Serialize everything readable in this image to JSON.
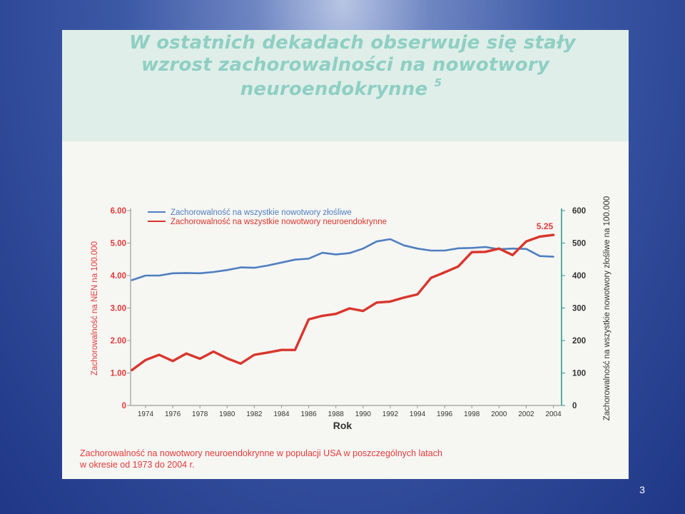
{
  "slide": {
    "title_lines": [
      "W ostatnich dekadach obserwuje się stały",
      "wzrost zachorowalności na nowotwory",
      "neuroendokrynne"
    ],
    "title_superscript": "5",
    "caption_lines": [
      "Zachorowalność na nowotwory neuroendokrynne w populacji USA w poszczególnych latach",
      "w okresie od 1973 do 2004 r."
    ],
    "slide_number": "3",
    "colors": {
      "title": "#8fcfc4",
      "title_band": "#dfeee8",
      "panel": "#f6f6f3",
      "left_axis": "#e23a3a",
      "right_axis": "#2e9b8f",
      "caption": "#e23a3a"
    }
  },
  "chart_data": {
    "type": "line",
    "title": "",
    "xlabel": "Rok",
    "ylabel_left": "Zachorowalność na NEN na 100.000",
    "ylabel_right": "Zachorowalność na wszystkie nowotwory złośliwe na 100.000",
    "x_ticks": [
      "1974",
      "1976",
      "1978",
      "1980",
      "1982",
      "1984",
      "1986",
      "1988",
      "1990",
      "1992",
      "1994",
      "1996",
      "1998",
      "2000",
      "2002",
      "2004"
    ],
    "y_left_ticks": [
      "6.00",
      "5.00",
      "4.00",
      "3.00",
      "2.00",
      "1.00",
      "0"
    ],
    "y_right_ticks": [
      "600",
      "500",
      "400",
      "300",
      "200",
      "100",
      "0"
    ],
    "ylim_left": [
      0,
      6
    ],
    "ylim_right": [
      0,
      600
    ],
    "xlim": [
      1972.9,
      2004.6
    ],
    "legend_position": "top-left",
    "grid": false,
    "x": [
      1973,
      1974,
      1975,
      1976,
      1977,
      1978,
      1979,
      1980,
      1981,
      1982,
      1983,
      1984,
      1985,
      1986,
      1987,
      1988,
      1989,
      1990,
      1991,
      1992,
      1993,
      1994,
      1995,
      1996,
      1997,
      1998,
      1999,
      2000,
      2001,
      2002,
      2003,
      2004
    ],
    "series": [
      {
        "name": "Zachorowalność na wszystkie nowotwory złośliwe",
        "axis": "right",
        "color": "#4f7fc0",
        "values": [
          386,
          400,
          400,
          407,
          408,
          407,
          411,
          417,
          425,
          424,
          431,
          440,
          449,
          452,
          470,
          465,
          469,
          483,
          505,
          512,
          493,
          483,
          477,
          477,
          484,
          485,
          488,
          481,
          483,
          482,
          460,
          458
        ]
      },
      {
        "name": "Zachorowalność na wszystkie nowotwory neuroendokrynne",
        "axis": "left",
        "color": "#d9352b",
        "values": [
          1.09,
          1.4,
          1.56,
          1.37,
          1.6,
          1.44,
          1.66,
          1.45,
          1.29,
          1.56,
          1.63,
          1.71,
          1.71,
          2.65,
          2.76,
          2.82,
          2.99,
          2.91,
          3.17,
          3.2,
          3.32,
          3.42,
          3.93,
          4.1,
          4.28,
          4.72,
          4.73,
          4.83,
          4.63,
          5.05,
          5.2,
          5.25
        ]
      }
    ],
    "annotations": [
      {
        "text": "5.25",
        "x": 2004,
        "y": 5.25,
        "axis": "left"
      }
    ]
  }
}
